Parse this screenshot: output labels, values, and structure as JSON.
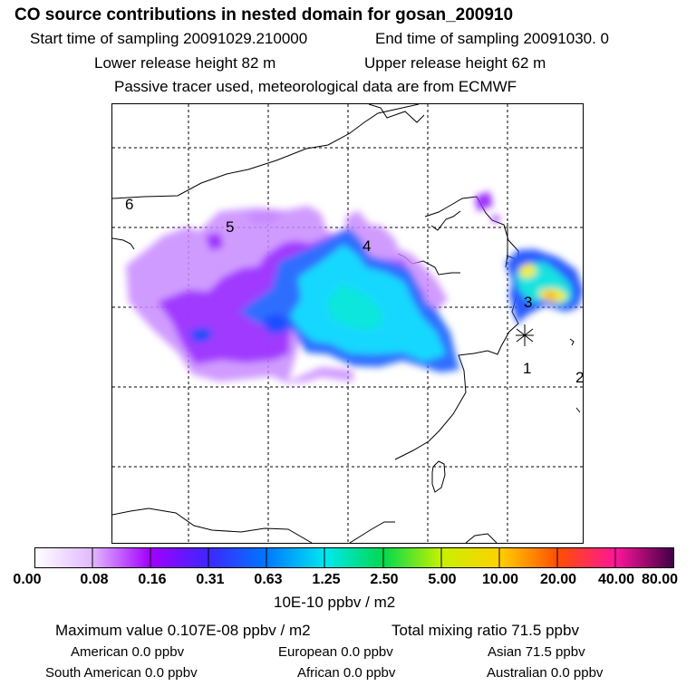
{
  "header": {
    "title": "CO  source contributions in nested domain for gosan_200910",
    "start_time": "Start time of sampling 20091029.210000",
    "end_time": "End time of sampling 20091030.     0",
    "lower_release": "Lower release height   82 m",
    "upper_release": "Upper release height   62 m",
    "tracer_note": "Passive tracer used, meteorological data are from ECMWF"
  },
  "map": {
    "labels": [
      "6",
      "5",
      "4",
      "3",
      "1",
      "2"
    ],
    "colors": {
      "frame": "#000000",
      "grid": "#000000",
      "low": "#c080ff",
      "mid": "#6a00ff",
      "blue": "#2f8cff",
      "cyan": "#19e0ff",
      "green": "#35d07a",
      "yellow": "#fff000",
      "orange": "#ff9c00"
    }
  },
  "colorbar": {
    "ticks": [
      "0.00",
      "0.08",
      "0.16",
      "0.31",
      "0.63",
      "1.25",
      "2.50",
      "5.00",
      "10.00",
      "20.00",
      "40.00",
      "80.00"
    ],
    "unit": "10E-10 ppbv / m2"
  },
  "footer": {
    "max_value": "Maximum value  0.107E-08 ppbv / m2",
    "total_mixing": "Total mixing ratio      71.5 ppbv",
    "american": "American        0.0 ppbv",
    "european": "European        0.0 ppbv",
    "asian": "Asian      71.5 ppbv",
    "south_american": "South American        0.0 ppbv",
    "african": "African        0.0 ppbv",
    "australian": "Australian        0.0 ppbv"
  }
}
